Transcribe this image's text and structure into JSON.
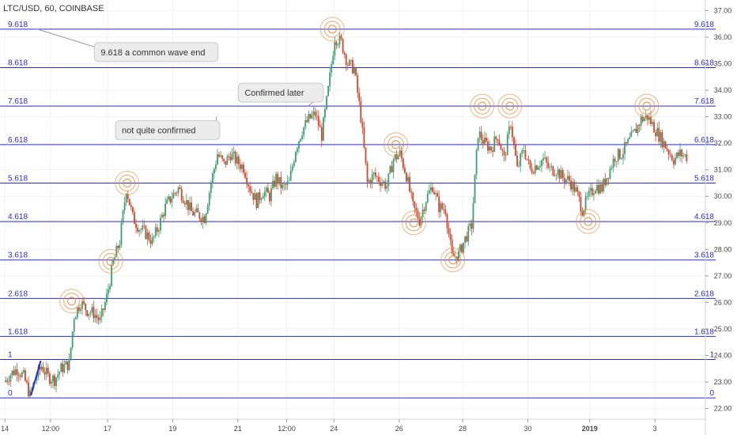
{
  "header": {
    "title": "LTC/USD, 60, COINBASE"
  },
  "chart_data": {
    "type": "candlestick",
    "title": "LTC/USD, 60, COINBASE",
    "ylim": [
      21.6,
      37.4
    ],
    "y_ticks": [
      22.0,
      23.0,
      24.0,
      25.0,
      26.0,
      27.0,
      28.0,
      29.0,
      30.0,
      31.0,
      32.0,
      33.0,
      34.0,
      35.0,
      36.0,
      37.0
    ],
    "x_ticks": [
      {
        "label": "14",
        "pos": 0.0
      },
      {
        "label": "12:00",
        "pos": 2.8
      },
      {
        "label": "17",
        "pos": 6.3
      },
      {
        "label": "19",
        "pos": 10.3
      },
      {
        "label": "21",
        "pos": 14.3
      },
      {
        "label": "12:00",
        "pos": 17.3
      },
      {
        "label": "24",
        "pos": 20.2
      },
      {
        "label": "26",
        "pos": 24.2
      },
      {
        "label": "28",
        "pos": 28.1
      },
      {
        "label": "30",
        "pos": 32.1
      },
      {
        "label": "2019",
        "pos": 35.9,
        "bold": true
      },
      {
        "label": "3",
        "pos": 39.9
      }
    ],
    "x_range": [
      -0.3,
      43.0
    ],
    "fib_levels": [
      {
        "label": "0",
        "value": 22.4
      },
      {
        "label": "1",
        "value": 23.85
      },
      {
        "label": "1.618",
        "value": 24.72
      },
      {
        "label": "2.618",
        "value": 26.15
      },
      {
        "label": "3.618",
        "value": 27.6
      },
      {
        "label": "4.618",
        "value": 29.05
      },
      {
        "label": "5.618",
        "value": 30.5
      },
      {
        "label": "6.618",
        "value": 31.95
      },
      {
        "label": "7.618",
        "value": 33.4
      },
      {
        "label": "8.618",
        "value": 34.85
      },
      {
        "label": "9.618",
        "value": 36.3
      }
    ],
    "price_path": [
      [
        0.0,
        23.0
      ],
      [
        0.4,
        23.3
      ],
      [
        0.8,
        23.5
      ],
      [
        1.2,
        23.2
      ],
      [
        1.6,
        22.5
      ],
      [
        1.9,
        23.1
      ],
      [
        2.3,
        23.6
      ],
      [
        2.7,
        23.2
      ],
      [
        3.1,
        23.1
      ],
      [
        3.5,
        23.5
      ],
      [
        4.0,
        23.7
      ],
      [
        4.3,
        25.5
      ],
      [
        4.7,
        26.0
      ],
      [
        5.1,
        25.7
      ],
      [
        5.5,
        25.6
      ],
      [
        5.9,
        25.3
      ],
      [
        6.3,
        26.2
      ],
      [
        6.7,
        27.5
      ],
      [
        7.1,
        28.3
      ],
      [
        7.5,
        30.3
      ],
      [
        7.9,
        29.2
      ],
      [
        8.3,
        28.8
      ],
      [
        8.7,
        28.6
      ],
      [
        9.1,
        28.3
      ],
      [
        9.5,
        28.9
      ],
      [
        9.9,
        29.6
      ],
      [
        10.3,
        30.0
      ],
      [
        10.7,
        30.3
      ],
      [
        11.1,
        29.9
      ],
      [
        11.5,
        29.4
      ],
      [
        11.9,
        29.3
      ],
      [
        12.3,
        29.2
      ],
      [
        12.7,
        30.5
      ],
      [
        13.1,
        31.6
      ],
      [
        13.5,
        31.2
      ],
      [
        13.9,
        31.6
      ],
      [
        14.3,
        31.3
      ],
      [
        14.7,
        31.1
      ],
      [
        15.1,
        30.3
      ],
      [
        15.5,
        29.8
      ],
      [
        15.9,
        30.2
      ],
      [
        16.3,
        30.0
      ],
      [
        16.7,
        30.7
      ],
      [
        17.1,
        30.3
      ],
      [
        17.5,
        30.5
      ],
      [
        17.9,
        31.8
      ],
      [
        18.3,
        32.5
      ],
      [
        18.7,
        32.9
      ],
      [
        19.1,
        33.1
      ],
      [
        19.5,
        32.3
      ],
      [
        19.9,
        34.0
      ],
      [
        20.3,
        36.0
      ],
      [
        20.7,
        35.8
      ],
      [
        21.1,
        35.0
      ],
      [
        21.5,
        34.8
      ],
      [
        21.9,
        33.0
      ],
      [
        22.3,
        30.5
      ],
      [
        22.7,
        30.8
      ],
      [
        23.1,
        30.6
      ],
      [
        23.5,
        30.4
      ],
      [
        23.9,
        31.4
      ],
      [
        24.3,
        31.6
      ],
      [
        24.7,
        30.8
      ],
      [
        25.1,
        29.6
      ],
      [
        25.5,
        29.1
      ],
      [
        25.9,
        29.9
      ],
      [
        26.3,
        30.4
      ],
      [
        26.7,
        29.6
      ],
      [
        27.1,
        29.5
      ],
      [
        27.5,
        27.7
      ],
      [
        27.9,
        27.8
      ],
      [
        28.3,
        28.4
      ],
      [
        28.7,
        28.9
      ],
      [
        29.1,
        32.4
      ],
      [
        29.5,
        32.0
      ],
      [
        29.9,
        31.8
      ],
      [
        30.3,
        32.3
      ],
      [
        30.7,
        31.4
      ],
      [
        31.1,
        32.8
      ],
      [
        31.5,
        31.0
      ],
      [
        31.9,
        31.8
      ],
      [
        32.3,
        31.0
      ],
      [
        32.7,
        31.2
      ],
      [
        33.1,
        31.4
      ],
      [
        33.5,
        31.0
      ],
      [
        33.9,
        31.0
      ],
      [
        34.3,
        30.7
      ],
      [
        34.7,
        30.6
      ],
      [
        35.1,
        30.2
      ],
      [
        35.5,
        29.5
      ],
      [
        35.9,
        30.0
      ],
      [
        36.3,
        30.4
      ],
      [
        36.7,
        30.3
      ],
      [
        37.1,
        30.9
      ],
      [
        37.5,
        31.5
      ],
      [
        37.9,
        31.6
      ],
      [
        38.3,
        32.0
      ],
      [
        38.7,
        32.4
      ],
      [
        39.1,
        32.9
      ],
      [
        39.5,
        33.0
      ],
      [
        39.9,
        32.6
      ],
      [
        40.3,
        32.2
      ],
      [
        40.7,
        31.8
      ],
      [
        41.1,
        31.4
      ],
      [
        41.5,
        31.6
      ],
      [
        41.9,
        31.5
      ]
    ],
    "impulse_line": [
      [
        1.6,
        22.5
      ],
      [
        2.2,
        23.8
      ]
    ],
    "highlight_circles": [
      {
        "x": 4.1,
        "y": 26.05
      },
      {
        "x": 6.5,
        "y": 27.55
      },
      {
        "x": 7.5,
        "y": 30.5
      },
      {
        "x": 20.1,
        "y": 36.3
      },
      {
        "x": 24.0,
        "y": 31.95
      },
      {
        "x": 25.1,
        "y": 29.0
      },
      {
        "x": 27.5,
        "y": 27.6
      },
      {
        "x": 29.3,
        "y": 33.4
      },
      {
        "x": 31.0,
        "y": 33.4
      },
      {
        "x": 35.8,
        "y": 29.05
      },
      {
        "x": 39.4,
        "y": 33.4
      }
    ],
    "callouts": [
      {
        "text": "9.618 a common wave end",
        "anchor_x": 2.0,
        "anchor_y": 36.3
      },
      {
        "text": "Confirmed later",
        "anchor_x": 18.6,
        "anchor_y": 33.4
      },
      {
        "text": "not quite confirmed",
        "anchor_x": 13.0,
        "anchor_y": 33.0
      }
    ],
    "colors": {
      "up": "#3e9c6e",
      "down": "#d84227",
      "fib_line": "#2a2ad0",
      "circle": "#f08c3c",
      "impulse": "#2a2ad0",
      "grid": "#f2f2f2"
    }
  }
}
